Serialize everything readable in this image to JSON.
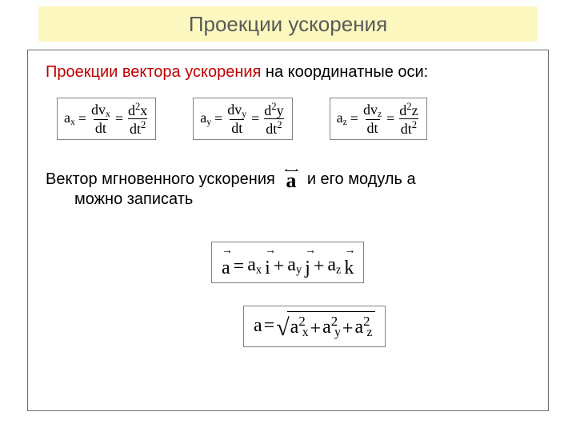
{
  "colors": {
    "title_bg": "#fcf8bf",
    "title_text": "#5a5a5a",
    "accent_red": "#c00000",
    "border": "#808080",
    "content_border": "#6b6b6b"
  },
  "title": "Проекции ускорения",
  "para1": {
    "red": "Проекции вектора ускорения",
    "rest": " на координатные оси:"
  },
  "formulas": {
    "ax": {
      "lhs": "a",
      "lhs_sub": "x",
      "f1_num": "dv",
      "f1_num_sub": "x",
      "f1_den": "dt",
      "f2_num": "d",
      "f2_num_sup": "2",
      "f2_num_var": "x",
      "f2_den": "dt",
      "f2_den_sup": "2"
    },
    "ay": {
      "lhs": "a",
      "lhs_sub": "y",
      "f1_num": "dv",
      "f1_num_sub": "y",
      "f1_den": "dt",
      "f2_num": "d",
      "f2_num_sup": "2",
      "f2_num_var": "y",
      "f2_den": "dt",
      "f2_den_sup": "2"
    },
    "az": {
      "lhs": "a",
      "lhs_sub": "z",
      "f1_num": "dv",
      "f1_num_sub": "z",
      "f1_den": "dt",
      "f2_num": "d",
      "f2_num_sup": "2",
      "f2_num_var": "z",
      "f2_den": "dt",
      "f2_den_sup": "2"
    }
  },
  "para2": {
    "before": "Вектор мгновенного ускорения",
    "vec_symbol": "a",
    "after": "и его модуль a",
    "cont": "можно записать"
  },
  "vector_eq": {
    "a": "a",
    "eq": " = ",
    "ax": "a",
    "ax_sub": "x",
    "i": "i",
    "plus1": "+ ",
    "ay": "a",
    "ay_sub": "y",
    "j": "j",
    "plus2": "+ ",
    "az": "a",
    "az_sub": "z",
    "k": "k"
  },
  "mag_eq": {
    "a": "a",
    "eq": " = ",
    "t1": "a",
    "t1_sup": "2",
    "t1_sub": "x",
    "p1": " + ",
    "t2": "a",
    "t2_sup": "2",
    "t2_sub": "y",
    "p2": " + ",
    "t3": "a",
    "t3_sup": "2",
    "t3_sub": "z"
  }
}
